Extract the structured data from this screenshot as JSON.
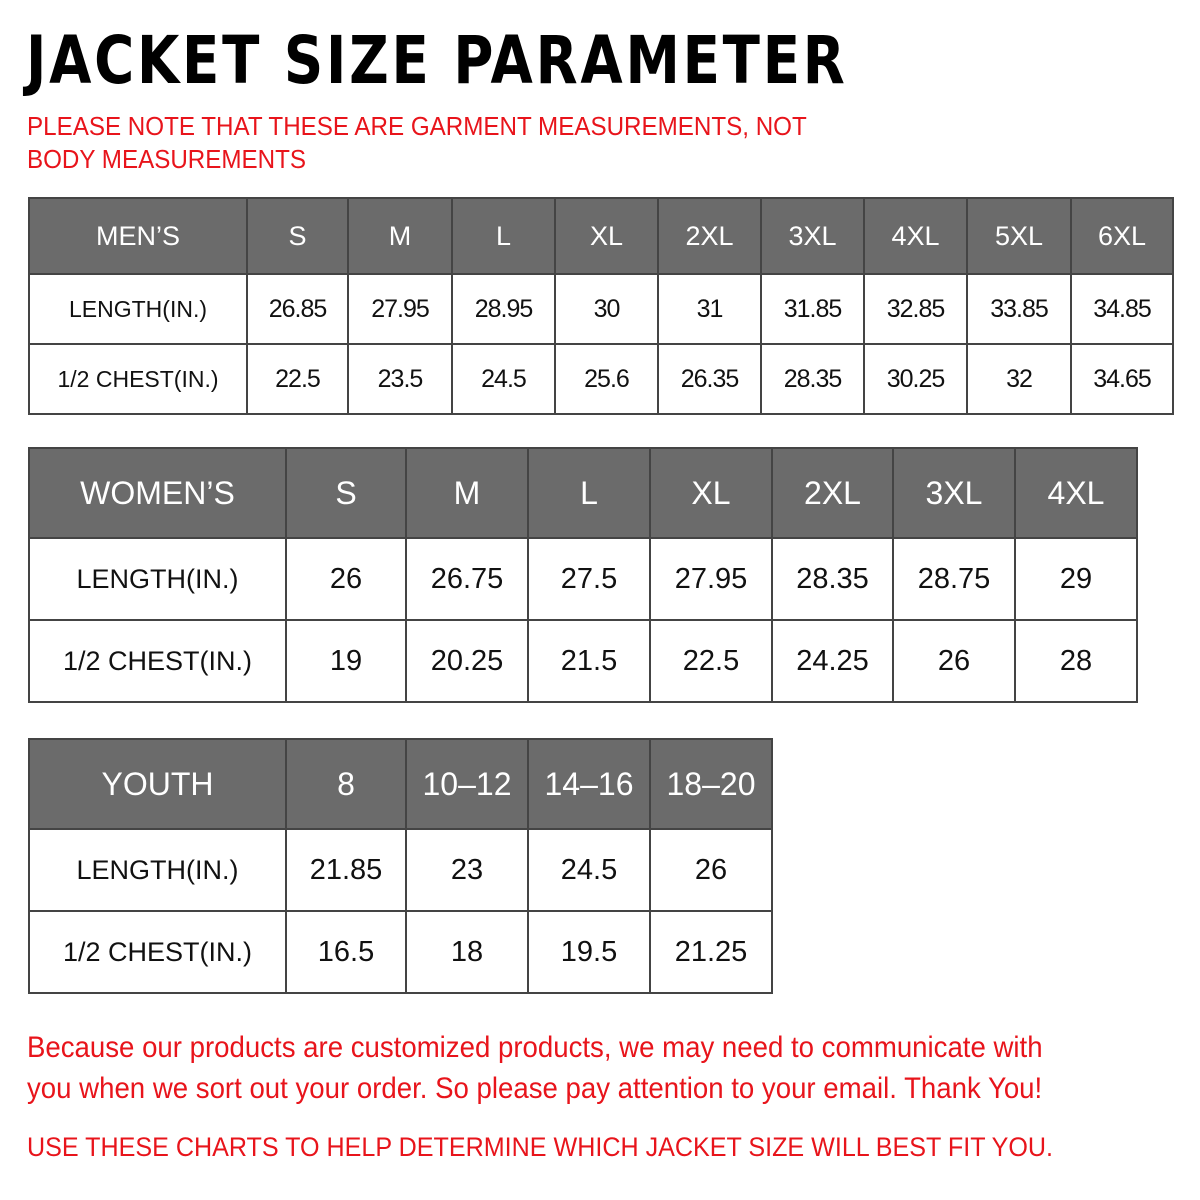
{
  "title": "JACKET SIZE PARAMETER",
  "note": "PLEASE NOTE THAT THESE ARE GARMENT MEASUREMENTS, NOT BODY MEASUREMENTS",
  "colors": {
    "header_bg": "#6b6b6b",
    "red_text": "#e8141b"
  },
  "tables": {
    "men": {
      "header": [
        "MEN’S",
        "S",
        "M",
        "L",
        "XL",
        "2XL",
        "3XL",
        "4XL",
        "5XL",
        "6XL"
      ],
      "rows": [
        [
          "LENGTH(IN.)",
          "26.85",
          "27.95",
          "28.95",
          "30",
          "31",
          "31.85",
          "32.85",
          "33.85",
          "34.85"
        ],
        [
          "1/2 CHEST(IN.)",
          "22.5",
          "23.5",
          "24.5",
          "25.6",
          "26.35",
          "28.35",
          "30.25",
          "32",
          "34.65"
        ]
      ]
    },
    "women": {
      "header": [
        "WOMEN’S",
        "S",
        "M",
        "L",
        "XL",
        "2XL",
        "3XL",
        "4XL"
      ],
      "rows": [
        [
          "LENGTH(IN.)",
          "26",
          "26.75",
          "27.5",
          "27.95",
          "28.35",
          "28.75",
          "29"
        ],
        [
          "1/2 CHEST(IN.)",
          "19",
          "20.25",
          "21.5",
          "22.5",
          "24.25",
          "26",
          "28"
        ]
      ]
    },
    "youth": {
      "header": [
        "YOUTH",
        "8",
        "10–12",
        "14–16",
        "18–20"
      ],
      "rows": [
        [
          "LENGTH(IN.)",
          "21.85",
          "23",
          "24.5",
          "26"
        ],
        [
          "1/2 CHEST(IN.)",
          "16.5",
          "18",
          "19.5",
          "21.25"
        ]
      ]
    }
  },
  "message": "Because our products are customized products, we may need to communicate with you when we sort out your order. So please pay attention to your email. Thank You!",
  "footer": "USE THESE CHARTS TO HELP DETERMINE WHICH JACKET SIZE WILL BEST FIT YOU."
}
